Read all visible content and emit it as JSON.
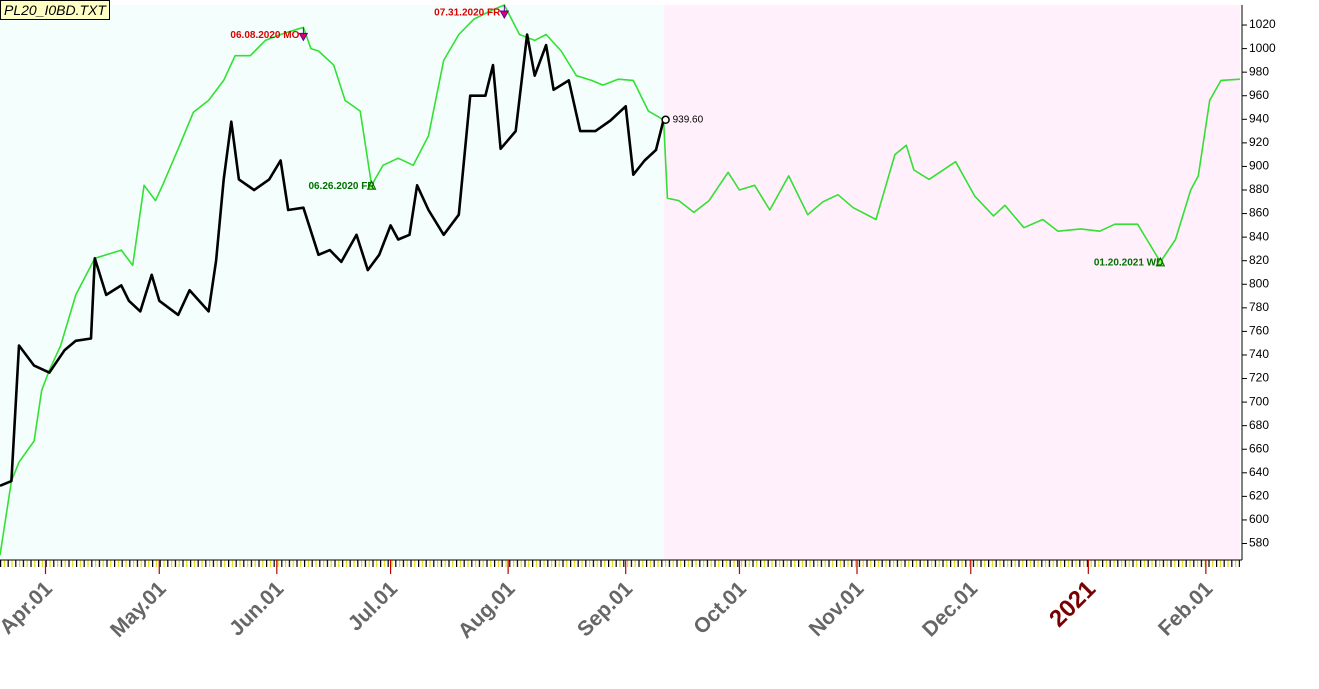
{
  "chart_data": {
    "type": "line",
    "title": "PL20_I0BD.TXT",
    "xlim": [
      "2020-03-20",
      "2021-02-10"
    ],
    "xticks": [
      {
        "value": "2020-04-01",
        "label": "Apr.01"
      },
      {
        "value": "2020-05-01",
        "label": "May.01"
      },
      {
        "value": "2020-06-01",
        "label": "Jun.01"
      },
      {
        "value": "2020-07-01",
        "label": "Jul.01"
      },
      {
        "value": "2020-08-01",
        "label": "Aug.01"
      },
      {
        "value": "2020-09-01",
        "label": "Sep.01"
      },
      {
        "value": "2020-10-01",
        "label": "Oct.01"
      },
      {
        "value": "2020-11-01",
        "label": "Nov.01"
      },
      {
        "value": "2020-12-01",
        "label": "Dec.01"
      },
      {
        "value": "2021-01-01",
        "label": "2021"
      },
      {
        "value": "2021-02-01",
        "label": "Feb.01"
      }
    ],
    "ylim": [
      566,
      1037
    ],
    "yticks": [
      580,
      600,
      620,
      640,
      660,
      680,
      700,
      720,
      740,
      760,
      780,
      800,
      820,
      840,
      860,
      880,
      900,
      920,
      940,
      960,
      980,
      1000,
      1020
    ],
    "series": [
      {
        "color": "#000000",
        "x": [
          "2020-03-20",
          "2020-03-23",
          "2020-03-25",
          "2020-03-29",
          "2020-04-02",
          "2020-04-06",
          "2020-04-09",
          "2020-04-13",
          "2020-04-14",
          "2020-04-17",
          "2020-04-21",
          "2020-04-23",
          "2020-04-26",
          "2020-04-29",
          "2020-05-01",
          "2020-05-06",
          "2020-05-09",
          "2020-05-14",
          "2020-05-16",
          "2020-05-18",
          "2020-05-20",
          "2020-05-22",
          "2020-05-26",
          "2020-05-30",
          "2020-06-02",
          "2020-06-04",
          "2020-06-08",
          "2020-06-12",
          "2020-06-15",
          "2020-06-18",
          "2020-06-22",
          "2020-06-25",
          "2020-06-28",
          "2020-07-01",
          "2020-07-03",
          "2020-07-06",
          "2020-07-08",
          "2020-07-11",
          "2020-07-15",
          "2020-07-19",
          "2020-07-22",
          "2020-07-26",
          "2020-07-28",
          "2020-07-30",
          "2020-08-03",
          "2020-08-06",
          "2020-08-08",
          "2020-08-11",
          "2020-08-13",
          "2020-08-17",
          "2020-08-20",
          "2020-08-24",
          "2020-08-28",
          "2020-09-01",
          "2020-09-03",
          "2020-09-06",
          "2020-09-09",
          "2020-09-11"
        ],
        "values": [
          629,
          633,
          748,
          731,
          725,
          744,
          752,
          754,
          822,
          791,
          799,
          786,
          777,
          808,
          786,
          774,
          795,
          777,
          820,
          889,
          938,
          889,
          880,
          889,
          905,
          863,
          865,
          825,
          829,
          819,
          842,
          812,
          825,
          850,
          838,
          842,
          884,
          863,
          842,
          859,
          960,
          960,
          986,
          915,
          930,
          1012,
          977,
          1003,
          965,
          973,
          930,
          930,
          939,
          951,
          893,
          905,
          914,
          939.6
        ]
      },
      {
        "color": "#33e033",
        "x": [
          "2020-03-20",
          "2020-03-23",
          "2020-03-25",
          "2020-03-29",
          "2020-03-31",
          "2020-04-02",
          "2020-04-05",
          "2020-04-09",
          "2020-04-14",
          "2020-04-21",
          "2020-04-24",
          "2020-04-27",
          "2020-04-30",
          "2020-05-02",
          "2020-05-06",
          "2020-05-10",
          "2020-05-14",
          "2020-05-18",
          "2020-05-21",
          "2020-05-25",
          "2020-05-29",
          "2020-06-02",
          "2020-06-06",
          "2020-06-08",
          "2020-06-10",
          "2020-06-12",
          "2020-06-16",
          "2020-06-19",
          "2020-06-23",
          "2020-06-26",
          "2020-06-29",
          "2020-07-03",
          "2020-07-07",
          "2020-07-11",
          "2020-07-15",
          "2020-07-19",
          "2020-07-23",
          "2020-07-28",
          "2020-07-31",
          "2020-08-04",
          "2020-08-08",
          "2020-08-11",
          "2020-08-15",
          "2020-08-19",
          "2020-08-23",
          "2020-08-26",
          "2020-08-30",
          "2020-09-03",
          "2020-09-07",
          "2020-09-11",
          "2020-09-12",
          "2020-09-15",
          "2020-09-19",
          "2020-09-23",
          "2020-09-28",
          "2020-10-01",
          "2020-10-05",
          "2020-10-09",
          "2020-10-14",
          "2020-10-19",
          "2020-10-23",
          "2020-10-27",
          "2020-10-31",
          "2020-11-06",
          "2020-11-11",
          "2020-11-14",
          "2020-11-16",
          "2020-11-20",
          "2020-11-27",
          "2020-12-02",
          "2020-12-07",
          "2020-12-10",
          "2020-12-15",
          "2020-12-20",
          "2020-12-24",
          "2020-12-30",
          "2021-01-04",
          "2021-01-08",
          "2021-01-14",
          "2021-01-20",
          "2021-01-24",
          "2021-01-28",
          "2021-01-30",
          "2021-02-02",
          "2021-02-05",
          "2021-02-10"
        ],
        "values": [
          570,
          633,
          649,
          667,
          710,
          727,
          748,
          791,
          822,
          829,
          816,
          884,
          871,
          885,
          915,
          946,
          956,
          973,
          994,
          994,
          1007,
          1012,
          1016,
          1018,
          1000,
          998,
          986,
          956,
          947,
          884,
          901,
          907,
          901,
          926,
          990,
          1012,
          1025,
          1033,
          1037,
          1012,
          1007,
          1012,
          998,
          977,
          973,
          969,
          974,
          973,
          947,
          939.6,
          873,
          871,
          861,
          871,
          895,
          880,
          884,
          863,
          892,
          859,
          870,
          876,
          865,
          855,
          910,
          918,
          897,
          889,
          904,
          875,
          858,
          867,
          848,
          855,
          845,
          847,
          845,
          851,
          851,
          819,
          838,
          880,
          892,
          956,
          973,
          974
        ]
      }
    ],
    "annotations": [
      {
        "label": "06.08.2020 MO",
        "x": "2020-06-08",
        "y": 1018,
        "kind": "high"
      },
      {
        "label": "07.31.2020 FR",
        "x": "2020-07-31",
        "y": 1037,
        "kind": "high"
      },
      {
        "label": "06.26.2020 FR",
        "x": "2020-06-26",
        "y": 884,
        "kind": "low"
      },
      {
        "label": "01.20.2021 WD",
        "x": "2021-01-20",
        "y": 819,
        "kind": "low"
      },
      {
        "label": "939.60",
        "x": "2020-09-11",
        "y": 939.6,
        "kind": "last"
      }
    ]
  }
}
